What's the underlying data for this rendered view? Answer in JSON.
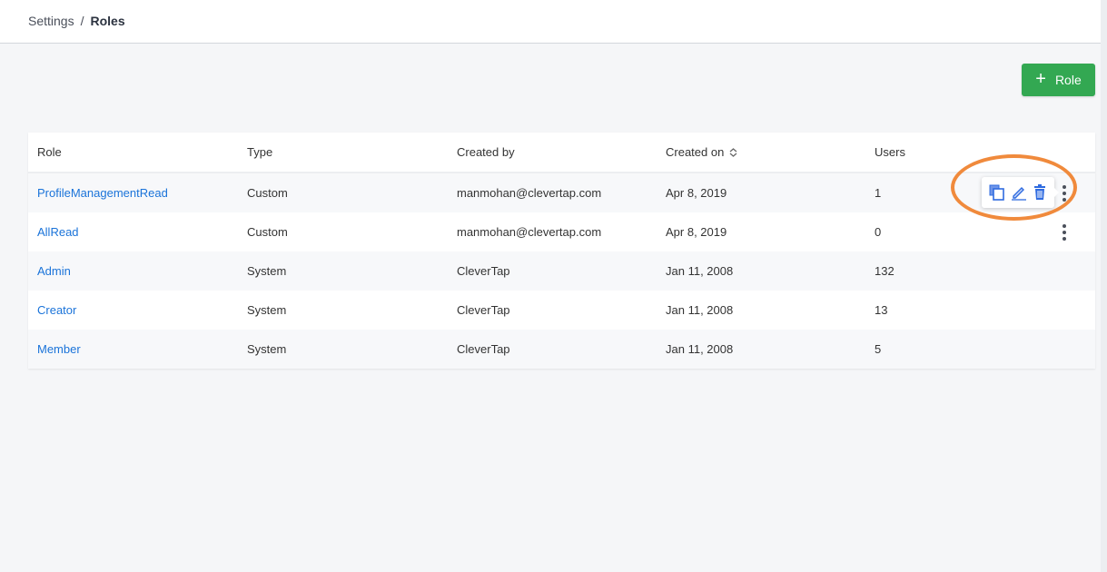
{
  "breadcrumb": {
    "parent": "Settings",
    "separator": "/",
    "current": "Roles"
  },
  "add_button": {
    "icon": "plus-icon",
    "label": "Role"
  },
  "table": {
    "columns": [
      "Role",
      "Type",
      "Created by",
      "Created on",
      "Users"
    ],
    "sort_column": "Created on",
    "rows": [
      {
        "role": "ProfileManagementRead",
        "type": "Custom",
        "created_by": "manmohan@clevertap.com",
        "created_on": "Apr 8, 2019",
        "users": "1"
      },
      {
        "role": "AllRead",
        "type": "Custom",
        "created_by": "manmohan@clevertap.com",
        "created_on": "Apr 8, 2019",
        "users": "0"
      },
      {
        "role": "Admin",
        "type": "System",
        "created_by": "CleverTap",
        "created_on": "Jan 11, 2008",
        "users": "132"
      },
      {
        "role": "Creator",
        "type": "System",
        "created_by": "CleverTap",
        "created_on": "Jan 11, 2008",
        "users": "13"
      },
      {
        "role": "Member",
        "type": "System",
        "created_by": "CleverTap",
        "created_on": "Jan 11, 2008",
        "users": "5"
      }
    ]
  },
  "row_actions": [
    "copy-icon",
    "edit-icon",
    "trash-icon"
  ],
  "colors": {
    "accent": "#33a852",
    "link": "#1a73d9",
    "action_icons": "#2f6be0",
    "highlight_ring": "#f08a3c"
  }
}
